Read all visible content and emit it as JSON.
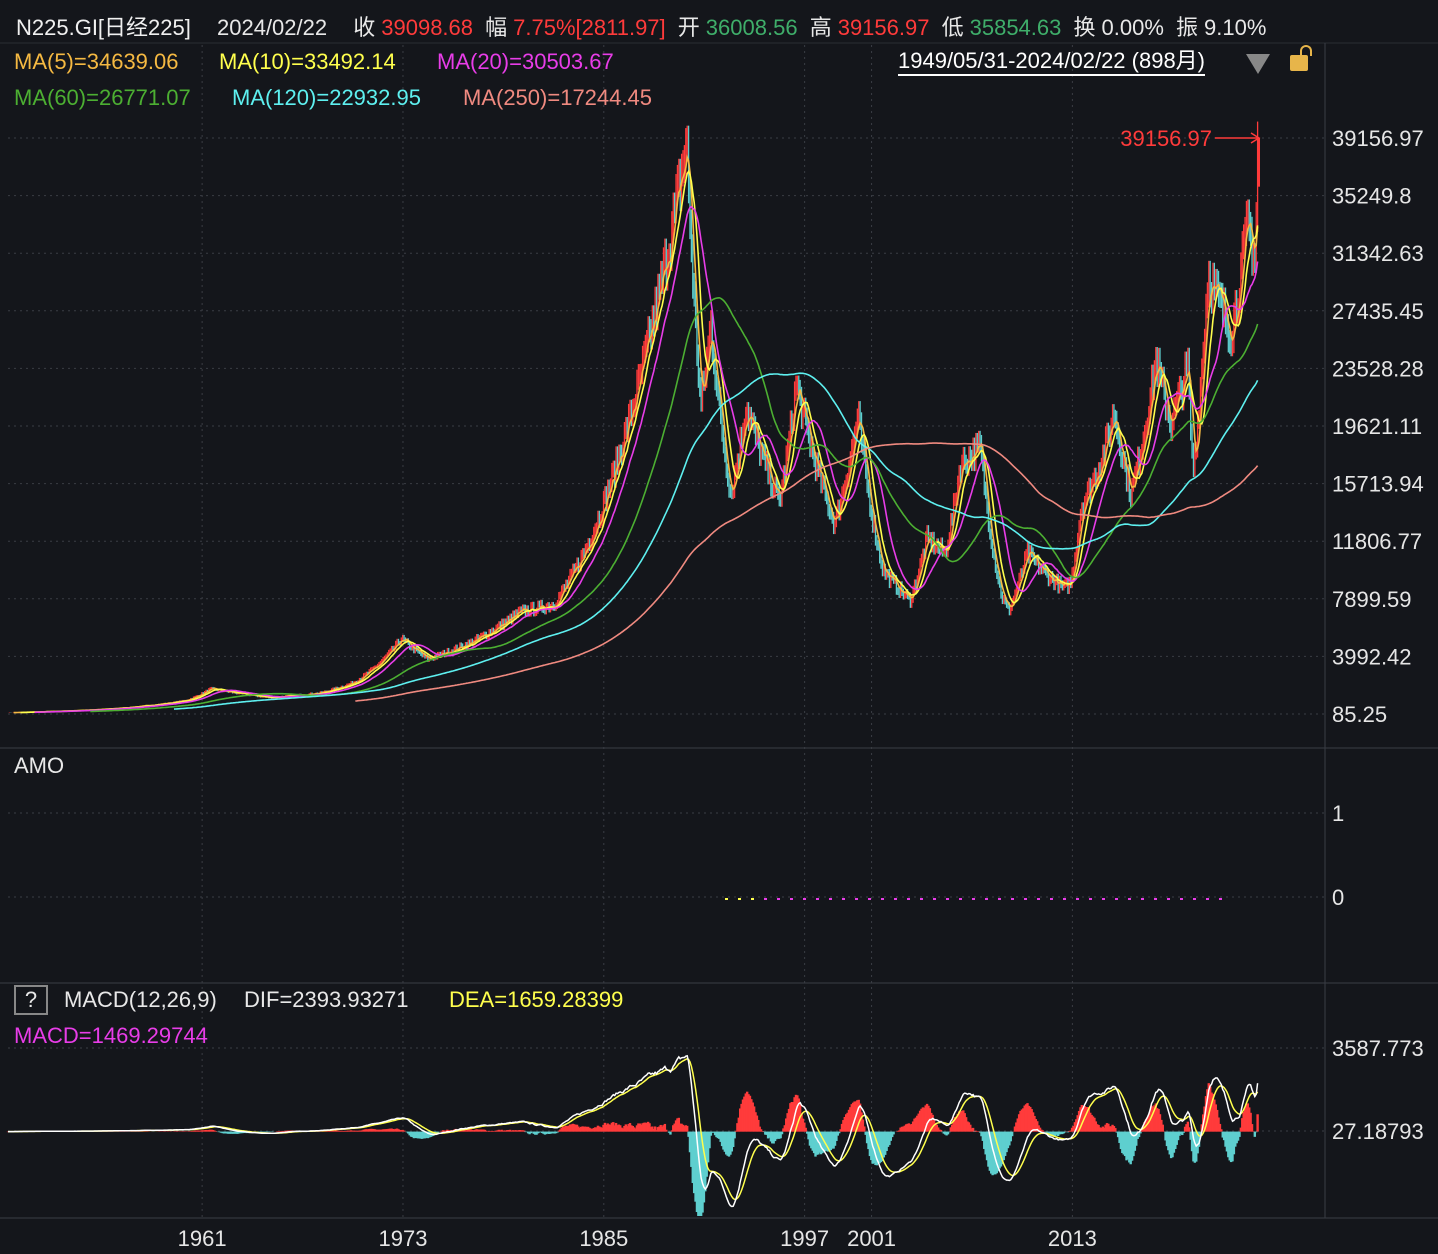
{
  "header": {
    "symbol": "N225.GI[日经225]",
    "date": "2024/02/22",
    "close_label": "收",
    "close": "39098.68",
    "change_label": "幅",
    "change": "7.75%[2811.97]",
    "open_label": "开",
    "open": "36008.56",
    "high_label": "高",
    "high": "39156.97",
    "low_label": "低",
    "low": "35854.63",
    "turnover_label": "换",
    "turnover": "0.00%",
    "amplitude_label": "振",
    "amplitude": "9.10%"
  },
  "ma_legend": [
    {
      "text": "MA(5)=34639.06",
      "color": "#f5b942"
    },
    {
      "text": "MA(10)=33492.14",
      "color": "#ffff4d"
    },
    {
      "text": "MA(20)=30503.67",
      "color": "#e83de8"
    },
    {
      "text": "MA(60)=26771.07",
      "color": "#4caf32"
    },
    {
      "text": "MA(120)=22932.95",
      "color": "#5ef0f0"
    },
    {
      "text": "MA(250)=17244.45",
      "color": "#f08a80"
    }
  ],
  "range": "1949/05/31-2024/02/22 (898月)",
  "max_marker": "39156.97",
  "amo": {
    "title": "AMO",
    "ticks": [
      "1",
      "0"
    ]
  },
  "macd": {
    "help": "?",
    "title": "MACD(12,26,9)",
    "dif": "DIF=2393.93271",
    "dea": "DEA=1659.28399",
    "macd": "MACD=1469.29744",
    "ticks": [
      "3587.773",
      "27.18793"
    ]
  },
  "colors": {
    "up": "#ff3b3b",
    "down": "#5ecfcf",
    "dif": "#ffffff",
    "dea": "#ffff4d"
  },
  "chart_data": {
    "type": "line",
    "period": "monthly",
    "y_ticks": [
      "39156.97",
      "35249.8",
      "31342.63",
      "27435.45",
      "23528.28",
      "19621.11",
      "15713.94",
      "11806.77",
      "7899.59",
      "3992.42",
      "85.25"
    ],
    "ylim": [
      85.25,
      39156.97
    ],
    "x_ticks": [
      "1961",
      "1973",
      "1985",
      "1997",
      "2001",
      "2013"
    ],
    "xlim": [
      1949.4,
      2024.15
    ],
    "grid": true,
    "close_approx": [
      [
        1949.4,
        176
      ],
      [
        1955,
        400
      ],
      [
        1960,
        1000
      ],
      [
        1961.5,
        1800
      ],
      [
        1965,
        1200
      ],
      [
        1968,
        1500
      ],
      [
        1970,
        2200
      ],
      [
        1972.9,
        5200
      ],
      [
        1974.5,
        3800
      ],
      [
        1977,
        4900
      ],
      [
        1980,
        7000
      ],
      [
        1982,
        7500
      ],
      [
        1984,
        11500
      ],
      [
        1986,
        18000
      ],
      [
        1987.8,
        26000
      ],
      [
        1989.95,
        38900
      ],
      [
        1990.8,
        21000
      ],
      [
        1991.4,
        26500
      ],
      [
        1992.6,
        15000
      ],
      [
        1993.5,
        21000
      ],
      [
        1995.5,
        14500
      ],
      [
        1996.5,
        22500
      ],
      [
        1998.8,
        13000
      ],
      [
        2000.2,
        20300
      ],
      [
        2001.7,
        9800
      ],
      [
        2003.3,
        7800
      ],
      [
        2004.3,
        12000
      ],
      [
        2005.4,
        11000
      ],
      [
        2006.3,
        17000
      ],
      [
        2007.5,
        18200
      ],
      [
        2008.8,
        8000
      ],
      [
        2009.2,
        7100
      ],
      [
        2010.3,
        11000
      ],
      [
        2011.5,
        9500
      ],
      [
        2012.5,
        8600
      ],
      [
        2012.9,
        9000
      ],
      [
        2013.5,
        14000
      ],
      [
        2014.8,
        17500
      ],
      [
        2015.5,
        20600
      ],
      [
        2016.5,
        15000
      ],
      [
        2018.0,
        24100
      ],
      [
        2018.9,
        19800
      ],
      [
        2019.9,
        23700
      ],
      [
        2020.2,
        16500
      ],
      [
        2021.1,
        30000
      ],
      [
        2022.5,
        26000
      ],
      [
        2023.5,
        33400
      ],
      [
        2023.9,
        31000
      ],
      [
        2024.13,
        39098.68
      ]
    ]
  }
}
